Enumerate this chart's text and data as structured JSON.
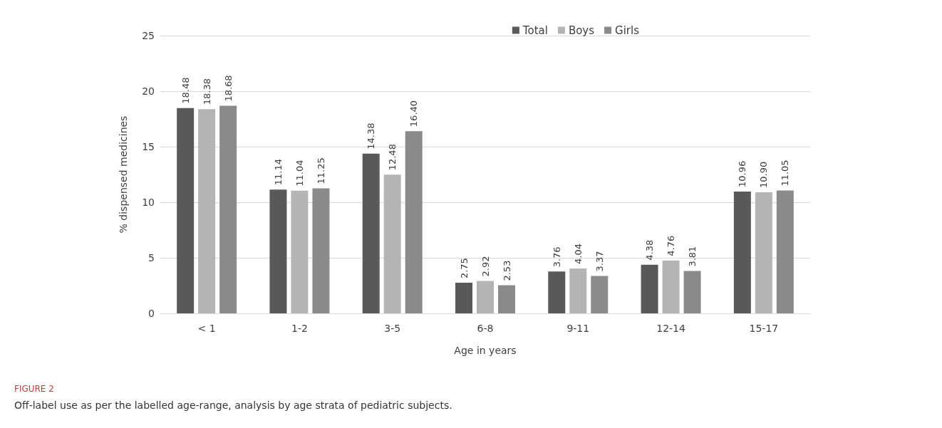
{
  "chart_data": {
    "type": "bar",
    "xlabel": "Age in years",
    "ylabel": "% dispensed medicines",
    "categories": [
      "< 1",
      "1-2",
      "3-5",
      "6-8",
      "9-11",
      "12-14",
      "15-17"
    ],
    "series": [
      {
        "name": "Total",
        "color": "#595959",
        "values": [
          18.48,
          11.14,
          14.38,
          2.75,
          3.76,
          4.38,
          10.96
        ],
        "value_labels": [
          "18.48",
          "11.14",
          "14.38",
          "2.75",
          "3.76",
          "4.38",
          "10.96"
        ]
      },
      {
        "name": "Boys",
        "color": "#b4b4b4",
        "values": [
          18.38,
          11.04,
          12.48,
          2.92,
          4.04,
          4.76,
          10.9
        ],
        "value_labels": [
          "18.38",
          "11.04",
          "12.48",
          "2.92",
          "4.04",
          "4.76",
          "10.90"
        ]
      },
      {
        "name": "Girls",
        "color": "#8a8a8a",
        "values": [
          18.68,
          11.25,
          16.4,
          2.53,
          3.37,
          3.81,
          11.05
        ],
        "value_labels": [
          "18.68",
          "11.25",
          "16.40",
          "2.53",
          "3.37",
          "3.81",
          "11.05"
        ]
      }
    ],
    "ylim": [
      0,
      25
    ],
    "yticks": [
      0,
      5,
      10,
      15,
      20,
      25
    ],
    "grid": "y",
    "legend": "top right",
    "annotations": [
      "FIGURE 2",
      "Off-label use as per the labelled age-range, analysis by age strata of pediatric subjects."
    ]
  }
}
